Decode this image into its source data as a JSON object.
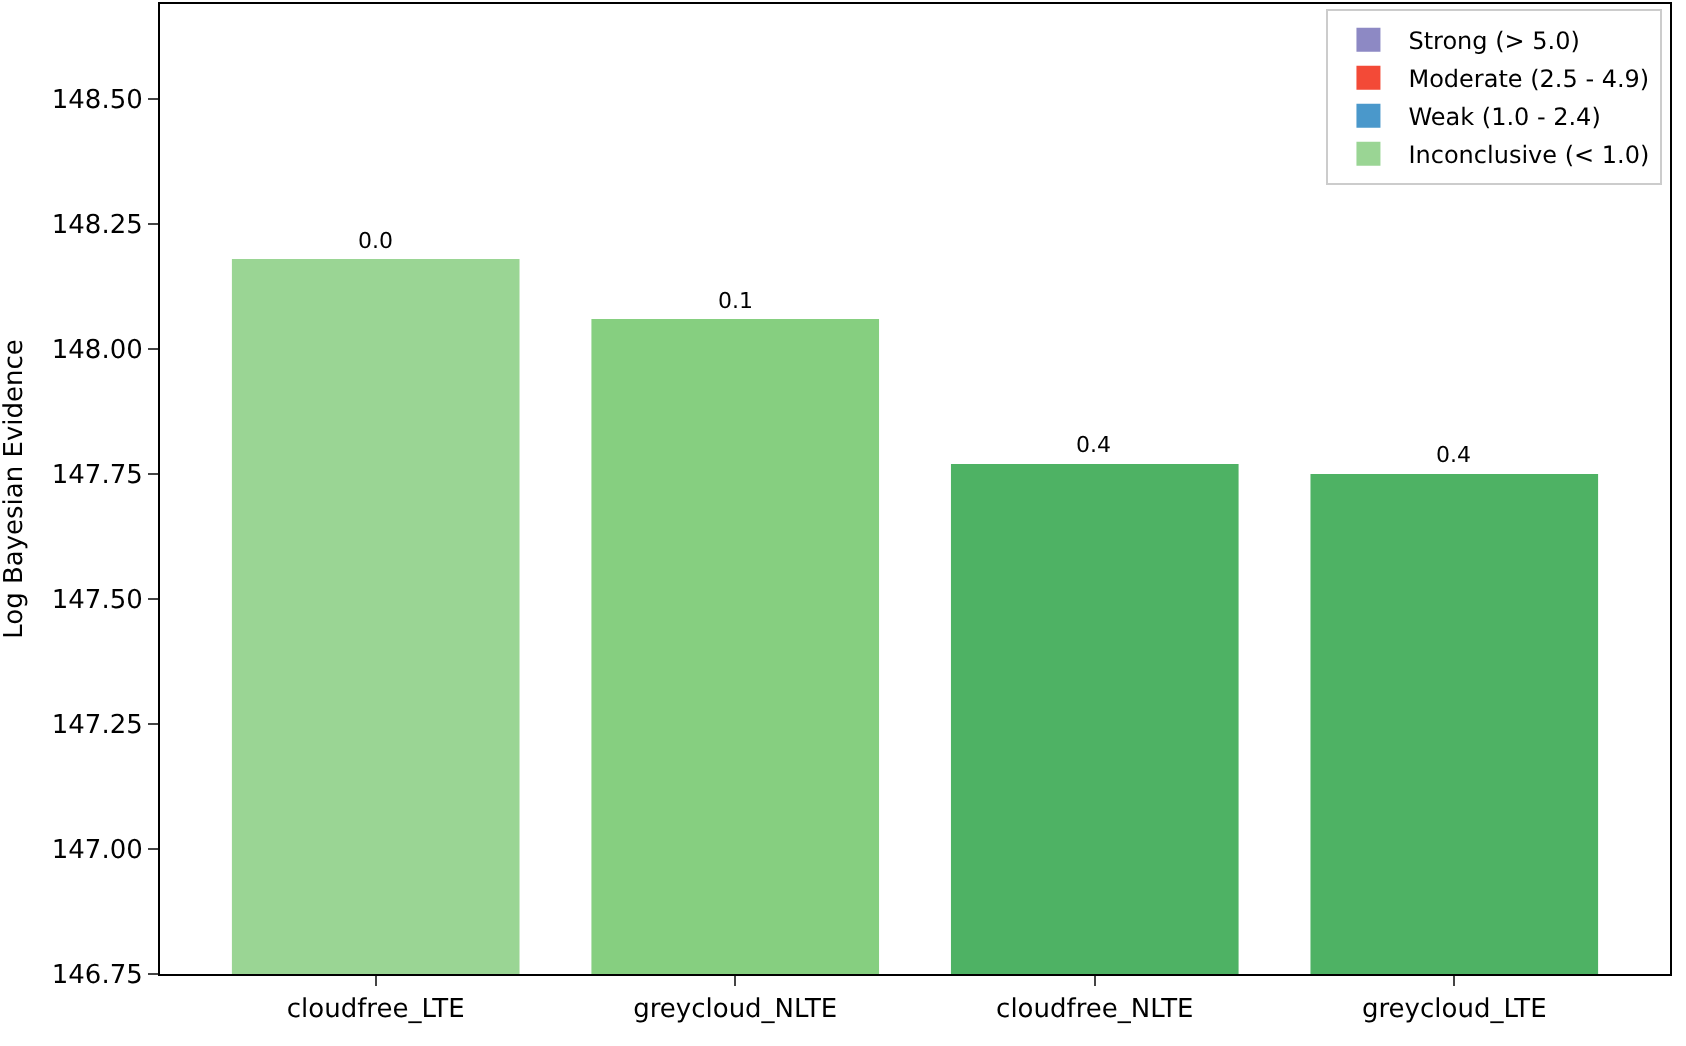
{
  "chart_data": {
    "type": "bar",
    "ylabel": "Log Bayesian Evidence",
    "categories": [
      "cloudfree_LTE",
      "greycloud_NLTE",
      "cloudfree_NLTE",
      "greycloud_LTE"
    ],
    "series": [
      {
        "name": "Strong (> 5.0)",
        "color": "#8d89c4",
        "values": [
          null,
          null,
          null,
          null
        ]
      },
      {
        "name": "Moderate (2.5 - 4.9)",
        "color": "#f34a37",
        "values": [
          null,
          null,
          null,
          null
        ]
      },
      {
        "name": "Weak (1.0 - 2.4)",
        "color": "#4a98cb",
        "values": [
          null,
          null,
          null,
          null
        ]
      },
      {
        "name": "Inconclusive (< 1.0)",
        "color": "#4eb264",
        "colors": [
          "#9ad594",
          "#86cf80",
          "#4eb264",
          "#4eb264"
        ],
        "values": [
          148.18,
          148.06,
          147.77,
          147.75
        ]
      }
    ],
    "annotations": [
      {
        "text": "0.0",
        "x": "cloudfree_LTE",
        "y": 148.18
      },
      {
        "text": "0.1",
        "x": "greycloud_NLTE",
        "y": 148.06
      },
      {
        "text": "0.4",
        "x": "cloudfree_NLTE",
        "y": 147.77
      },
      {
        "text": "0.4",
        "x": "greycloud_LTE",
        "y": 147.75
      }
    ],
    "ylim": [
      146.75,
      148.69
    ],
    "yticks": [
      {
        "value": 146.75,
        "label": "146.75"
      },
      {
        "value": 147.0,
        "label": "147.00"
      },
      {
        "value": 147.25,
        "label": "147.25"
      },
      {
        "value": 147.5,
        "label": "147.50"
      },
      {
        "value": 147.75,
        "label": "147.75"
      },
      {
        "value": 148.0,
        "label": "148.00"
      },
      {
        "value": 148.25,
        "label": "148.25"
      },
      {
        "value": 148.5,
        "label": "148.50"
      }
    ],
    "legend": "top right"
  }
}
